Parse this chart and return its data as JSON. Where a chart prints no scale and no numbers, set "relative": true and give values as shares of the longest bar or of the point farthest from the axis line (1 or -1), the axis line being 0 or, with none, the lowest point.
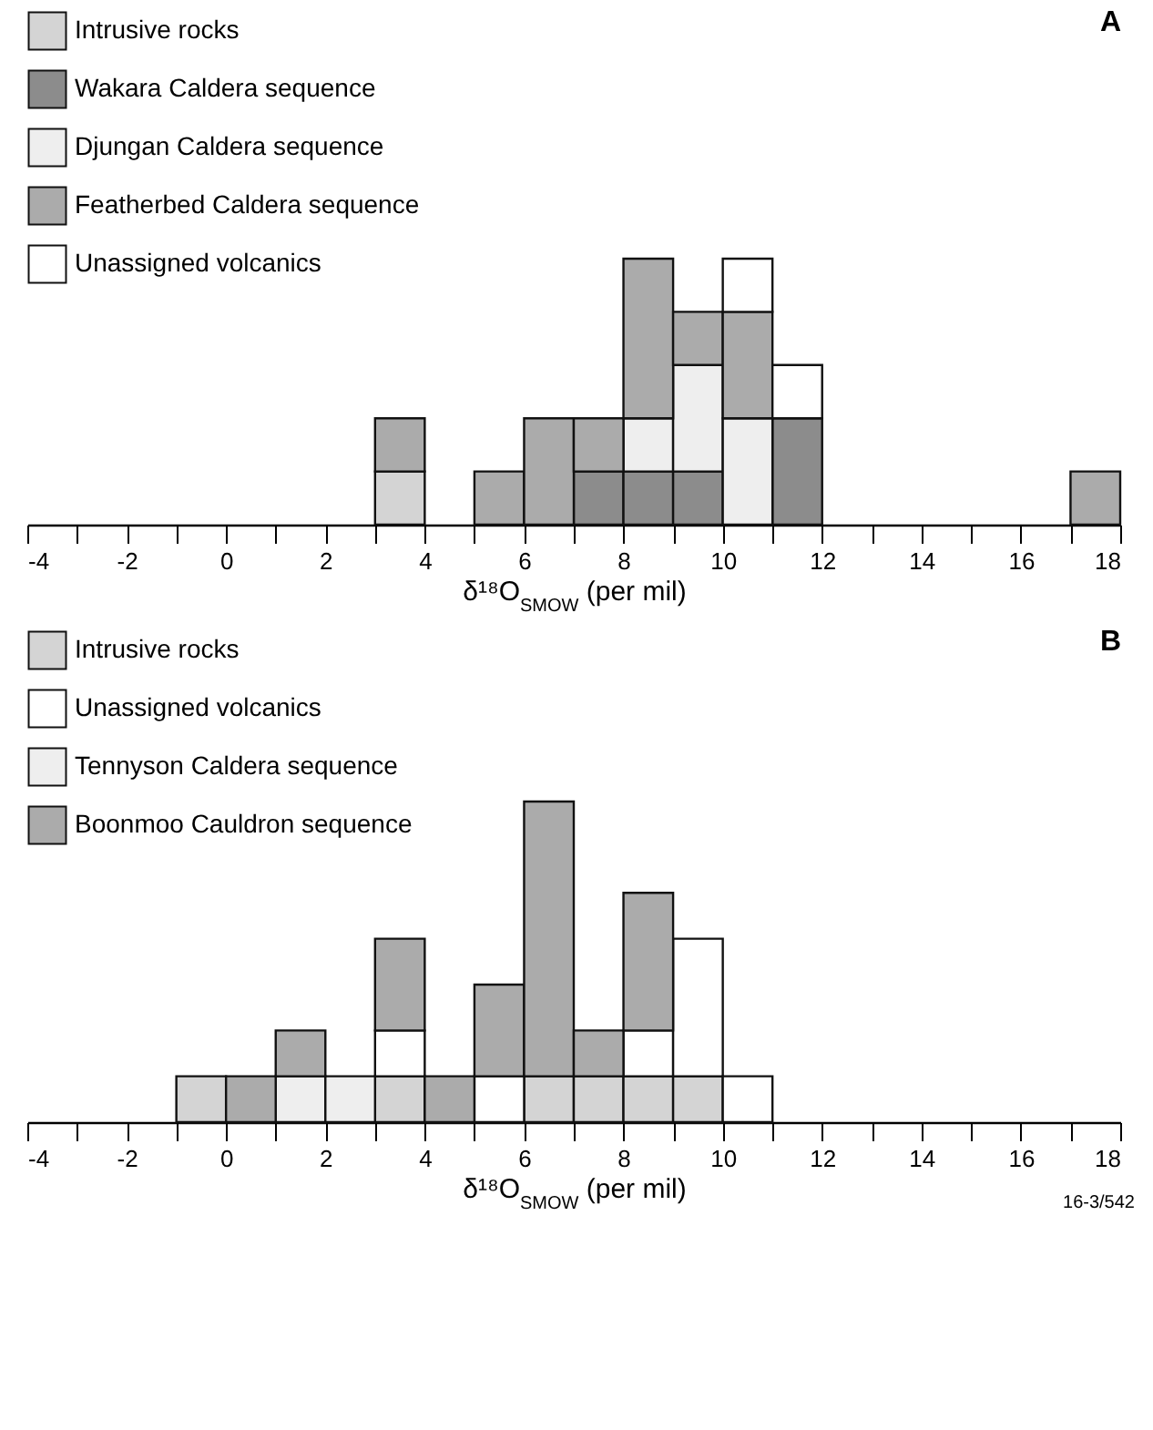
{
  "chart_data": [
    {
      "type": "bar",
      "title": "A",
      "xlabel": "δ¹⁸O$_{SMOW}$ (per mil)",
      "relative": true,
      "stacked": true,
      "legend": "top left",
      "grid": false,
      "x": [
        3.5,
        4.5,
        5.5,
        6.5,
        7.5,
        8.5,
        9.5,
        10.5,
        11.5,
        12.5,
        13.5,
        14.5,
        15.5,
        16.5,
        17.5
      ],
      "xlim": [
        -4,
        18
      ],
      "xticks": [
        -4,
        {
          "value": -3,
          "label": null
        },
        -2,
        {
          "value": -1,
          "label": null
        },
        0,
        {
          "value": 1,
          "label": null
        },
        2,
        {
          "value": 3,
          "label": null
        },
        4,
        {
          "value": 5,
          "label": null
        },
        6,
        {
          "value": 7,
          "label": null
        },
        8,
        {
          "value": 9,
          "label": null
        },
        10,
        {
          "value": 11,
          "label": null
        },
        12,
        {
          "value": 13,
          "label": null
        },
        14,
        {
          "value": 15,
          "label": null
        },
        16,
        {
          "value": 17,
          "label": null
        },
        18
      ],
      "series": [
        {
          "name": "Intrusive rocks",
          "color": "#d4d4d4",
          "values": [
            0.2,
            null,
            null,
            null,
            null,
            null,
            null,
            null,
            null,
            null,
            null,
            null,
            null,
            null,
            null
          ]
        },
        {
          "name": "Wakara Caldera sequence",
          "color": "#8c8c8c",
          "values": [
            null,
            null,
            null,
            null,
            0.2,
            0.2,
            0.2,
            null,
            0.4,
            null,
            null,
            null,
            null,
            null,
            null
          ]
        },
        {
          "name": "Djungan Caldera sequence",
          "color": "#eeeeee",
          "values": [
            null,
            null,
            null,
            null,
            null,
            0.2,
            0.4,
            0.4,
            null,
            null,
            null,
            null,
            null,
            null,
            null
          ]
        },
        {
          "name": "Featherbed Caldera sequence",
          "color": "#ababab",
          "values": [
            0.2,
            null,
            0.2,
            0.4,
            0.2,
            0.6,
            0.2,
            0.4,
            null,
            null,
            null,
            null,
            null,
            null,
            0.2
          ]
        },
        {
          "name": "Unassigned volcanics",
          "color": "#ffffff",
          "values": [
            null,
            null,
            null,
            null,
            null,
            null,
            null,
            0.2,
            0.2,
            null,
            null,
            null,
            null,
            null,
            null
          ]
        }
      ]
    },
    {
      "type": "bar",
      "title": "B",
      "xlabel": "δ¹⁸O$_{SMOW}$ (per mil)",
      "relative": true,
      "stacked": true,
      "legend": "top left",
      "grid": false,
      "x": [
        -0.5,
        0.5,
        1.5,
        2.5,
        3.5,
        4.5,
        5.5,
        6.5,
        7.5,
        8.5,
        9.5,
        10.5
      ],
      "xlim": [
        -4,
        18
      ],
      "xticks": [
        -4,
        {
          "value": -3,
          "label": null
        },
        -2,
        {
          "value": -1,
          "label": null
        },
        0,
        {
          "value": 1,
          "label": null
        },
        2,
        {
          "value": 3,
          "label": null
        },
        4,
        {
          "value": 5,
          "label": null
        },
        6,
        {
          "value": 7,
          "label": null
        },
        8,
        {
          "value": 9,
          "label": null
        },
        10,
        {
          "value": 11,
          "label": null
        },
        12,
        {
          "value": 13,
          "label": null
        },
        14,
        {
          "value": 15,
          "label": null
        },
        16,
        {
          "value": 17,
          "label": null
        },
        18
      ],
      "series": [
        {
          "name": "Intrusive rocks",
          "color": "#d4d4d4",
          "values": [
            0.143,
            null,
            null,
            null,
            0.143,
            null,
            null,
            0.143,
            0.143,
            0.143,
            0.143,
            null
          ]
        },
        {
          "name": "Unassigned volcanics",
          "color": "#ffffff",
          "values": [
            null,
            null,
            null,
            null,
            0.143,
            null,
            0.143,
            null,
            null,
            0.143,
            0.429,
            0.143
          ]
        },
        {
          "name": "Tennyson Caldera sequence",
          "color": "#eeeeee",
          "values": [
            null,
            null,
            0.143,
            0.143,
            null,
            null,
            null,
            null,
            null,
            null,
            null,
            null
          ]
        },
        {
          "name": "Boonmoo Cauldron sequence",
          "color": "#ababab",
          "values": [
            null,
            0.143,
            0.143,
            null,
            0.286,
            0.143,
            0.286,
            0.857,
            0.143,
            0.429,
            null,
            null
          ]
        }
      ],
      "annotations": [
        "16-3/542"
      ]
    }
  ]
}
